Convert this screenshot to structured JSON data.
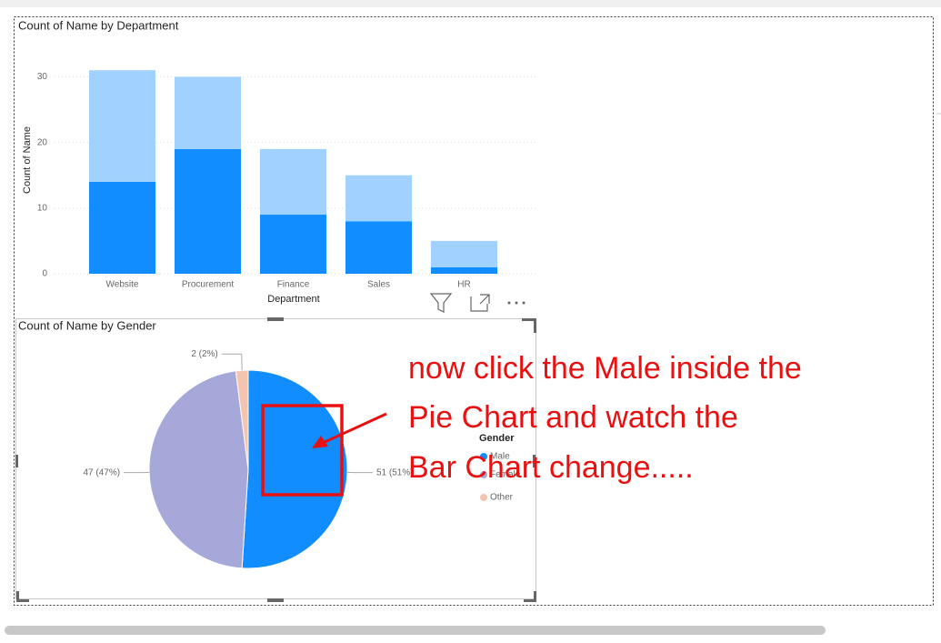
{
  "chart_data": [
    {
      "type": "bar",
      "title": "Count of Name by Department",
      "x_label": "Department",
      "y_label": "Count of Name",
      "categories": [
        "Website",
        "Procurement",
        "Finance",
        "Sales",
        "HR"
      ],
      "series": [
        {
          "color": "#118DFF",
          "values": [
            14,
            19,
            9,
            8,
            1
          ]
        },
        {
          "color": "#A0D1FF",
          "values": [
            17,
            11,
            10,
            7,
            4
          ]
        }
      ],
      "stacked": true,
      "ylim": [
        0,
        32
      ],
      "yticks": [
        0,
        10,
        20,
        30
      ],
      "grid": true
    },
    {
      "type": "pie",
      "title": "Count of Name by Gender",
      "legend_title": "Gender",
      "categories": [
        "Male",
        "Female",
        "Other"
      ],
      "values": [
        51,
        47,
        2
      ],
      "value_labels": [
        "51 (51%)",
        "47 (47%)",
        "2 (2%)"
      ],
      "colors": [
        "#118DFF",
        "#A5A8D8",
        "#F5C4AF"
      ]
    }
  ],
  "annotation": [
    "now click the Male inside the",
    "Pie Chart and watch the",
    "Bar Chart change....."
  ]
}
